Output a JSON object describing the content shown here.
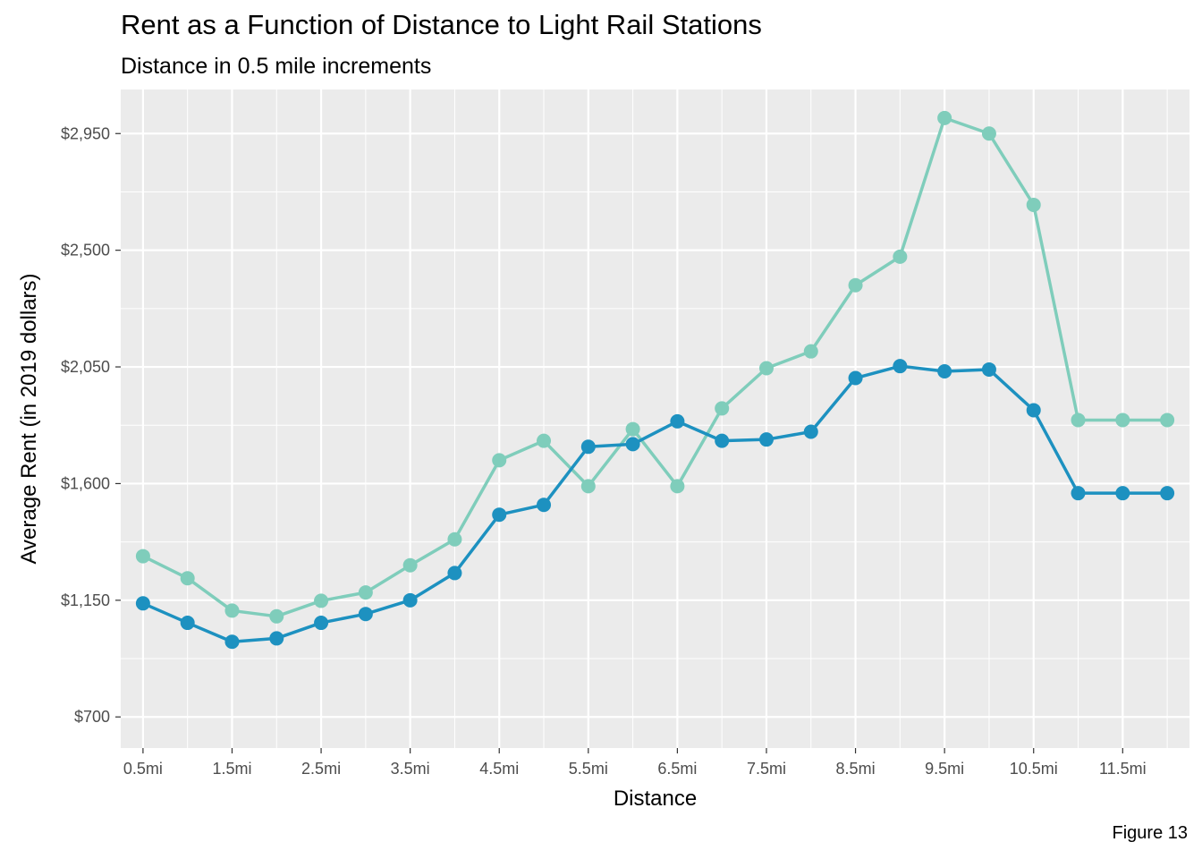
{
  "title": "Rent as a Function of Distance to Light Rail Stations",
  "subtitle": "Distance in 0.5 mile increments",
  "caption": "Figure 13",
  "chart_data": {
    "type": "line",
    "title": "Rent as a Function of Distance to Light Rail Stations",
    "subtitle": "Distance in 0.5 mile increments",
    "xlabel": "Distance",
    "ylabel": "Average Rent (in 2019 dollars)",
    "x": [
      0.5,
      1.0,
      1.5,
      2.0,
      2.5,
      3.0,
      3.5,
      4.0,
      4.5,
      5.0,
      5.5,
      6.0,
      6.5,
      7.0,
      7.5,
      8.0,
      8.5,
      9.0,
      9.5,
      10.0,
      10.5,
      11.0,
      11.5,
      12.0
    ],
    "xlim": [
      0.25,
      12.25
    ],
    "ylim": [
      580,
      3120
    ],
    "x_ticks": [
      0.5,
      1.5,
      2.5,
      3.5,
      4.5,
      5.5,
      6.5,
      7.5,
      8.5,
      9.5,
      10.5,
      11.5
    ],
    "x_tick_labels": [
      "0.5mi",
      "1.5mi",
      "2.5mi",
      "3.5mi",
      "4.5mi",
      "5.5mi",
      "6.5mi",
      "7.5mi",
      "8.5mi",
      "9.5mi",
      "10.5mi",
      "11.5mi"
    ],
    "y_ticks": [
      700,
      1150,
      1600,
      2050,
      2500,
      2950
    ],
    "y_tick_labels": [
      "$700",
      "$1,150",
      "$1,600",
      "$2,050",
      "$2,500",
      "$2,950"
    ],
    "grid": true,
    "legend": "none",
    "background": "#ebebeb",
    "series": [
      {
        "color": "#7fcdbb",
        "values": [
          1320,
          1235,
          1110,
          1088,
          1148,
          1180,
          1285,
          1385,
          1690,
          1765,
          1590,
          1810,
          1590,
          1890,
          2045,
          2110,
          2365,
          2475,
          3010,
          2950,
          2675,
          1845,
          1845,
          1845
        ]
      },
      {
        "color": "#1d91c0",
        "values": [
          1138,
          1063,
          990,
          1003,
          1063,
          1097,
          1150,
          1255,
          1480,
          1518,
          1742,
          1752,
          1840,
          1765,
          1770,
          1800,
          2007,
          2053,
          2033,
          2040,
          1883,
          1563,
          1563,
          1563
        ]
      }
    ]
  }
}
